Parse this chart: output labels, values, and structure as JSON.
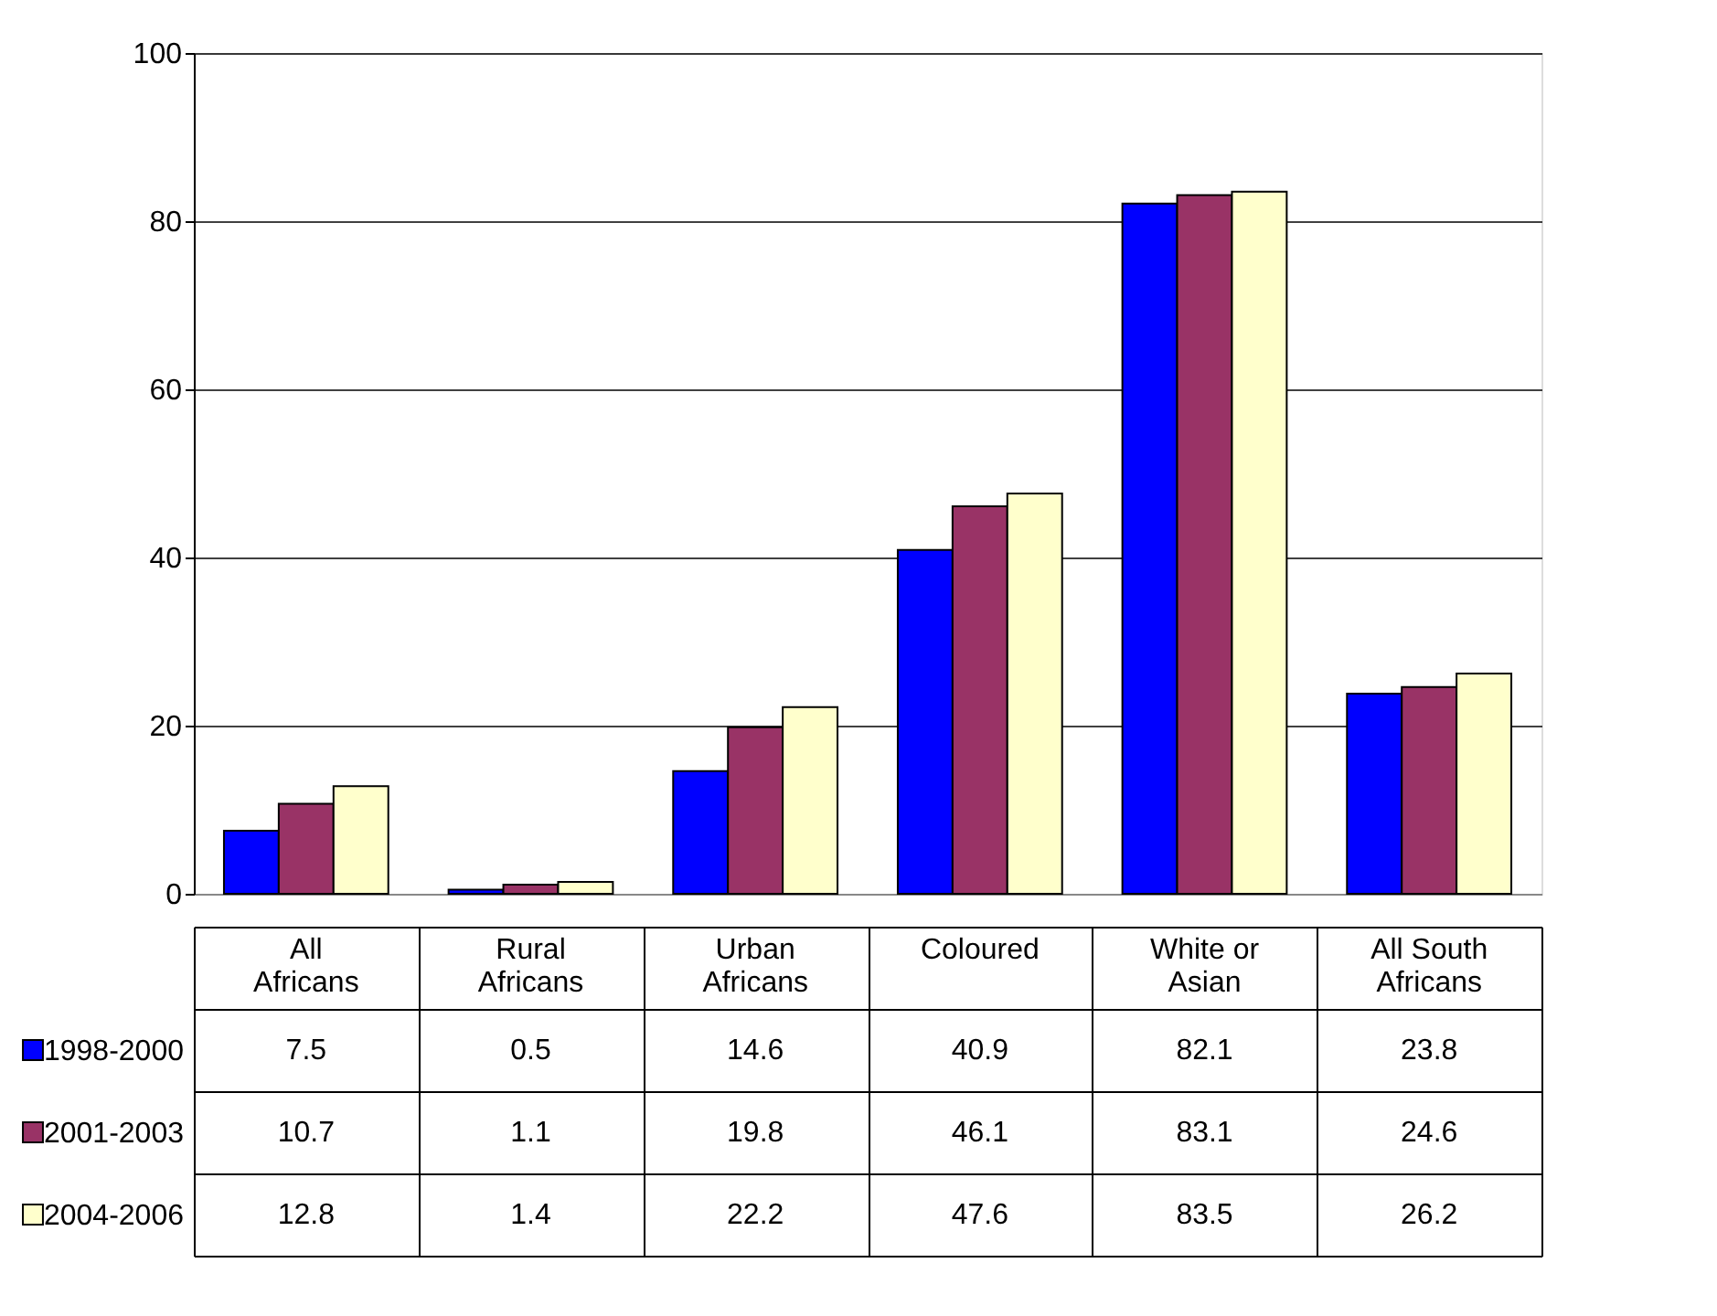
{
  "chart_data": {
    "type": "bar",
    "categories": [
      "All Africans",
      "Rural Africans",
      "Urban Africans",
      "Coloured",
      "White or Asian",
      "All South Africans"
    ],
    "series": [
      {
        "name": "1998-2000",
        "color": "#0000ff",
        "values": [
          7.5,
          0.5,
          14.6,
          40.9,
          82.1,
          23.8
        ]
      },
      {
        "name": "2001-2003",
        "color": "#993366",
        "values": [
          10.7,
          1.1,
          19.8,
          46.1,
          83.1,
          24.6
        ]
      },
      {
        "name": "2004-2006",
        "color": "#ffffcc",
        "values": [
          12.8,
          1.4,
          22.2,
          47.6,
          83.5,
          26.2
        ]
      }
    ],
    "ylim": [
      0,
      100
    ],
    "yticks": [
      0,
      20,
      40,
      60,
      80,
      100
    ],
    "grid": "y",
    "legend": "bottom",
    "data_labels": true
  }
}
